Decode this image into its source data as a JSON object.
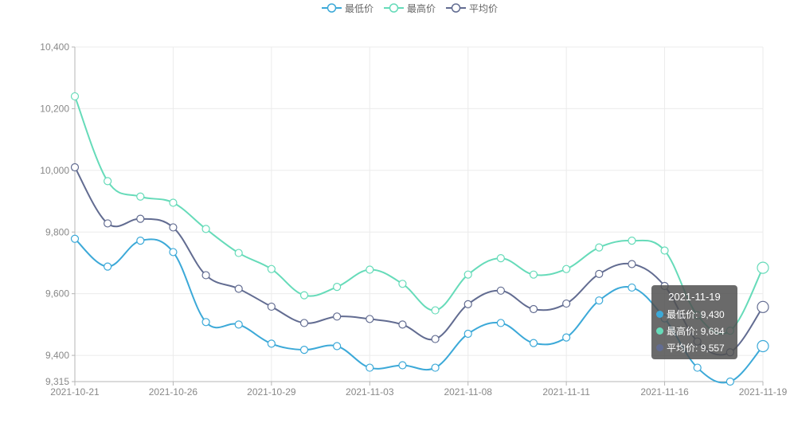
{
  "colors": {
    "min": "#3ca9d8",
    "max": "#66dbb9",
    "avg": "#626c91",
    "grid": "#ebebeb",
    "axis": "#b5b5b5",
    "tick_text": "#888888"
  },
  "legend": [
    {
      "key": "min",
      "label": "最低价",
      "icon": "circle-line-icon"
    },
    {
      "key": "max",
      "label": "最高价",
      "icon": "circle-line-icon"
    },
    {
      "key": "avg",
      "label": "平均价",
      "icon": "circle-line-icon"
    }
  ],
  "chart_data": {
    "type": "line",
    "smooth": true,
    "x": [
      "2021-10-21",
      "2021-10-22",
      "2021-10-25",
      "2021-10-26",
      "2021-10-27",
      "2021-10-28",
      "2021-10-29",
      "2021-11-01",
      "2021-11-02",
      "2021-11-03",
      "2021-11-04",
      "2021-11-05",
      "2021-11-08",
      "2021-11-09",
      "2021-11-10",
      "2021-11-11",
      "2021-11-12",
      "2021-11-15",
      "2021-11-16",
      "2021-11-17",
      "2021-11-18",
      "2021-11-19"
    ],
    "x_tick_labels": [
      "2021-10-21",
      "2021-10-26",
      "2021-10-29",
      "2021-11-03",
      "2021-11-08",
      "2021-11-11",
      "2021-11-16",
      "2021-11-19"
    ],
    "y_tick_labels": [
      "10,400",
      "10,200",
      "10,000",
      "9,800",
      "9,600",
      "9,400",
      "9,315"
    ],
    "y_ticks": [
      10400,
      10200,
      10000,
      9800,
      9600,
      9400,
      9315
    ],
    "ylim": [
      9315,
      10400
    ],
    "grid": true,
    "legend_position": "top-center",
    "series": [
      {
        "key": "min",
        "name": "最低价",
        "values": [
          9778,
          9688,
          9772,
          9735,
          9508,
          9500,
          9438,
          9418,
          9430,
          9360,
          9368,
          9360,
          9470,
          9505,
          9440,
          9458,
          9578,
          9620,
          9520,
          9360,
          9315,
          9430
        ]
      },
      {
        "key": "max",
        "name": "最高价",
        "values": [
          10240,
          9965,
          9915,
          9895,
          9810,
          9732,
          9680,
          9595,
          9622,
          9678,
          9632,
          9546,
          9662,
          9715,
          9662,
          9680,
          9750,
          9772,
          9740,
          9530,
          9480,
          9684
        ]
      },
      {
        "key": "avg",
        "name": "平均价",
        "values": [
          10010,
          9828,
          9843,
          9815,
          9660,
          9616,
          9558,
          9505,
          9526,
          9518,
          9500,
          9453,
          9566,
          9610,
          9550,
          9568,
          9664,
          9696,
          9625,
          9445,
          9410,
          9557
        ]
      }
    ],
    "tooltip": {
      "title": "2021-11-19",
      "rows": [
        {
          "key": "min",
          "label": "最低价",
          "value": "9,430"
        },
        {
          "key": "max",
          "label": "最高价",
          "value": "9,684"
        },
        {
          "key": "avg",
          "label": "平均价",
          "value": "9,557"
        }
      ]
    }
  }
}
